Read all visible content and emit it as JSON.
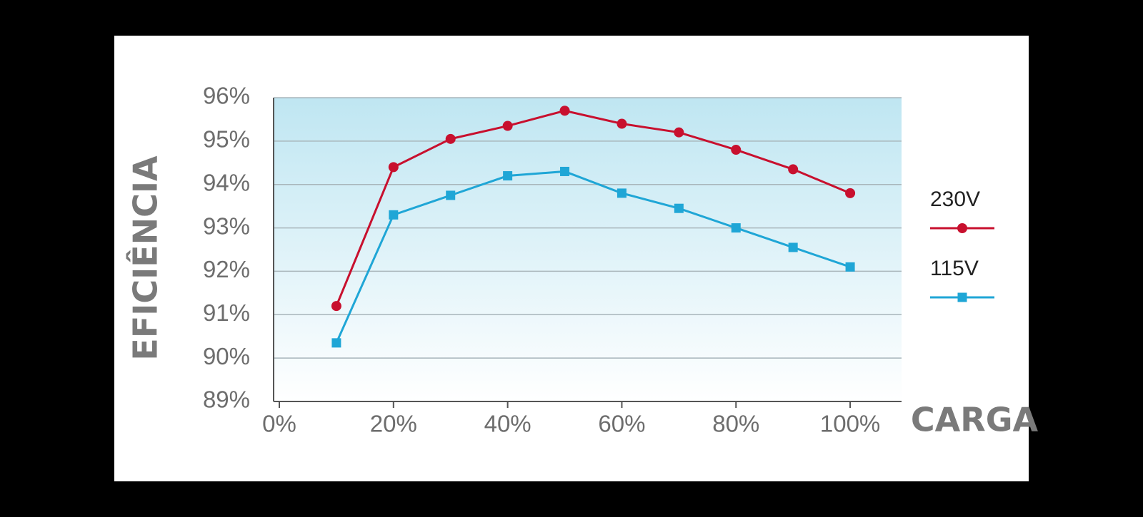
{
  "chart_data": {
    "type": "line",
    "y_label": "EFICIÊNCIA",
    "x_label": "CARGA",
    "x": [
      10,
      20,
      30,
      40,
      50,
      60,
      70,
      80,
      90,
      100
    ],
    "series": [
      {
        "name": "230V",
        "color": "#c8102e",
        "marker": "circle",
        "values": [
          91.2,
          94.4,
          95.05,
          95.35,
          95.7,
          95.4,
          95.2,
          94.8,
          94.35,
          93.8
        ]
      },
      {
        "name": "115V",
        "color": "#1fa6d6",
        "marker": "square",
        "values": [
          90.35,
          93.3,
          93.75,
          94.2,
          94.3,
          93.8,
          93.45,
          93.0,
          92.55,
          92.1
        ]
      }
    ],
    "xlim": [
      -1,
      109
    ],
    "xticks": [
      {
        "value": 0,
        "label": "0%"
      },
      {
        "value": 20,
        "label": "20%"
      },
      {
        "value": 40,
        "label": "40%"
      },
      {
        "value": 60,
        "label": "60%"
      },
      {
        "value": 80,
        "label": "80%"
      },
      {
        "value": 100,
        "label": "100%"
      }
    ],
    "ylim": [
      89,
      96
    ],
    "yticks": [
      {
        "value": 89,
        "label": "89%"
      },
      {
        "value": 90,
        "label": "90%"
      },
      {
        "value": 91,
        "label": "91%"
      },
      {
        "value": 92,
        "label": "92%"
      },
      {
        "value": 93,
        "label": "93%"
      },
      {
        "value": 94,
        "label": "94%"
      },
      {
        "value": 95,
        "label": "95%"
      },
      {
        "value": 96,
        "label": "96%"
      }
    ],
    "grid": true
  }
}
